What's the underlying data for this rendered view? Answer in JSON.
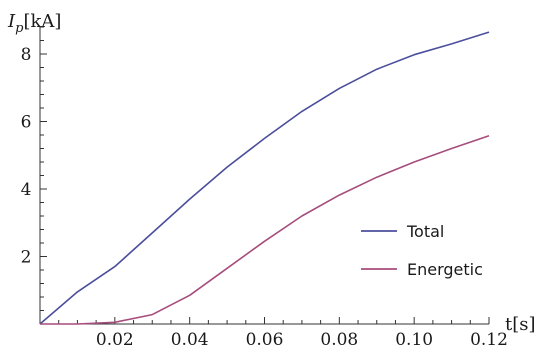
{
  "chart_data": {
    "type": "line",
    "xlabel": "t[s]",
    "ylabel_main": "I",
    "ylabel_sub": "p",
    "ylabel_unit": "[kA]",
    "xlim": [
      0,
      0.12
    ],
    "ylim": [
      0,
      8.8
    ],
    "x_ticks": [
      0.02,
      0.04,
      0.06,
      0.08,
      0.1,
      0.12
    ],
    "x_tick_labels": [
      "0.02",
      "0.04",
      "0.06",
      "0.08",
      "0.10",
      "0.12"
    ],
    "y_ticks": [
      2,
      4,
      6,
      8
    ],
    "y_tick_labels": [
      "2",
      "4",
      "6",
      "8"
    ],
    "grid": false,
    "legend_position": "right",
    "x": [
      0,
      0.01,
      0.02,
      0.03,
      0.04,
      0.05,
      0.06,
      0.07,
      0.08,
      0.09,
      0.1,
      0.11,
      0.12
    ],
    "series": [
      {
        "name": "Total",
        "color": "#4b4f9c",
        "values": [
          0,
          0.95,
          1.7,
          2.7,
          3.7,
          4.65,
          5.5,
          6.3,
          6.98,
          7.55,
          7.98,
          8.3,
          8.65
        ]
      },
      {
        "name": "Energetic",
        "color": "#a64d7d",
        "values": [
          0,
          0,
          0.05,
          0.28,
          0.85,
          1.65,
          2.45,
          3.2,
          3.82,
          4.35,
          4.8,
          5.2,
          5.58
        ]
      }
    ]
  }
}
